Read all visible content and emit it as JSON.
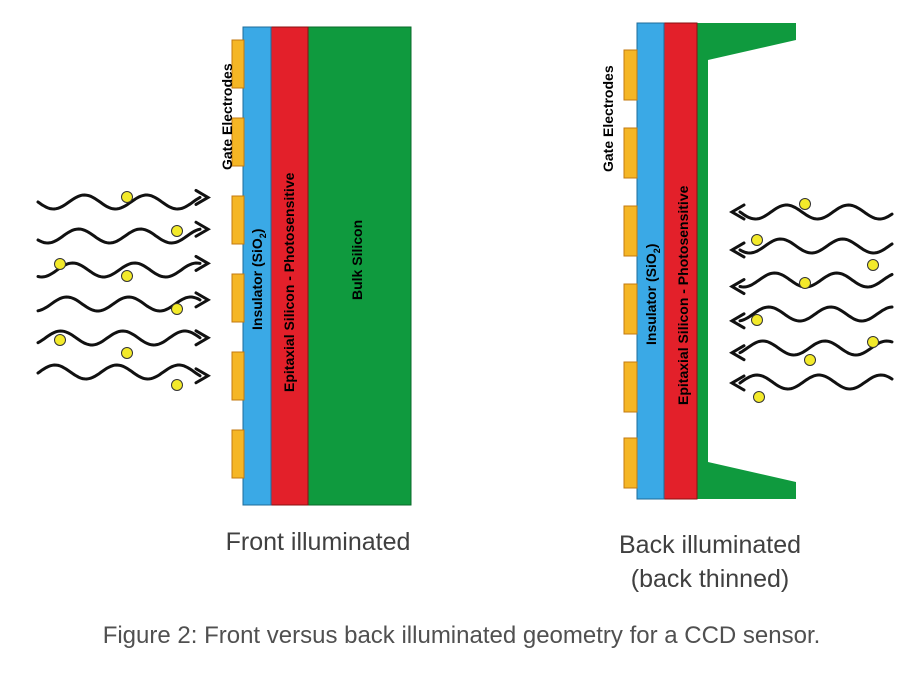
{
  "colors": {
    "insulator": "#3aa9e6",
    "epitaxial": "#e3202a",
    "bulk": "#0f9a3e",
    "electrode": "#f5b625",
    "electrode_stroke": "#c37a10",
    "photon": "#f3ea2a",
    "wave": "#111111"
  },
  "front_panel": {
    "gate_label": "Gate Electrodes",
    "insulator_label": "Insulator (SiO",
    "insulator_sub": "2",
    "insulator_close": ")",
    "epitaxial_label": "Epitaxial Silicon - Photosensitive",
    "bulk_label": "Bulk Silicon",
    "caption": "Front illuminated"
  },
  "back_panel": {
    "gate_label": "Gate Electrodes",
    "insulator_label": "Insulator (SiO",
    "insulator_sub": "2",
    "insulator_close": ")",
    "epitaxial_label": "Epitaxial Silicon - Photosensitive",
    "caption_line1": "Back illuminated",
    "caption_line2": "(back thinned)"
  },
  "figure_caption": "Figure 2: Front versus back illuminated geometry for a CCD sensor."
}
